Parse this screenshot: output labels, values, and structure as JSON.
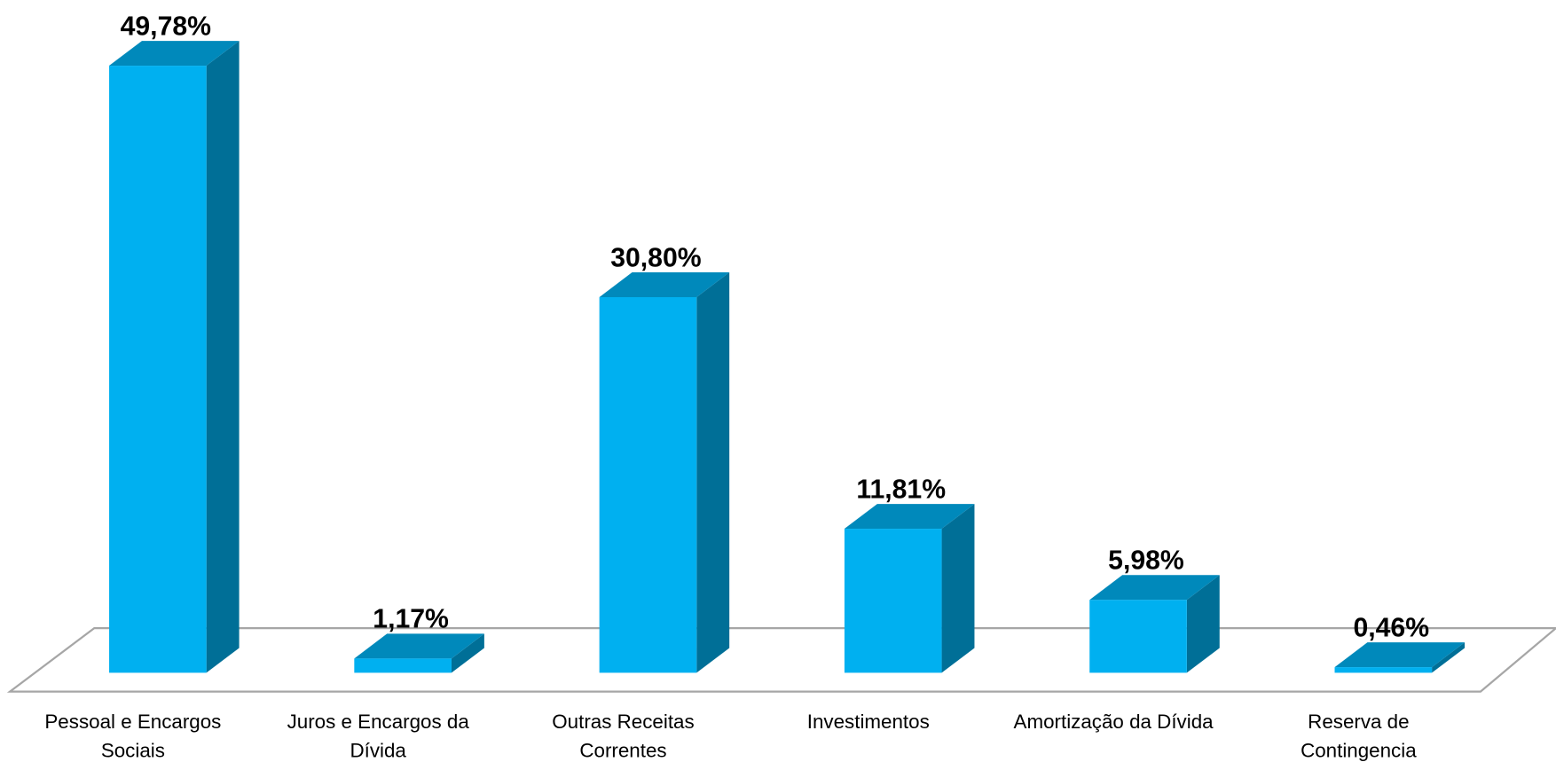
{
  "chart_data": {
    "type": "bar3d",
    "categories": [
      "Pessoal e Encargos Sociais",
      "Juros e Encargos da Dívida",
      "Outras Receitas Correntes",
      "Investimentos",
      "Amortização da Dívida",
      "Reserva de Contingencia"
    ],
    "values": [
      49.78,
      1.17,
      30.8,
      11.81,
      5.98,
      0.46
    ],
    "value_labels": [
      "49,78%",
      "1,17%",
      "30,80%",
      "11,81%",
      "5,98%",
      "0,46%"
    ],
    "color": "#00b0f0"
  }
}
